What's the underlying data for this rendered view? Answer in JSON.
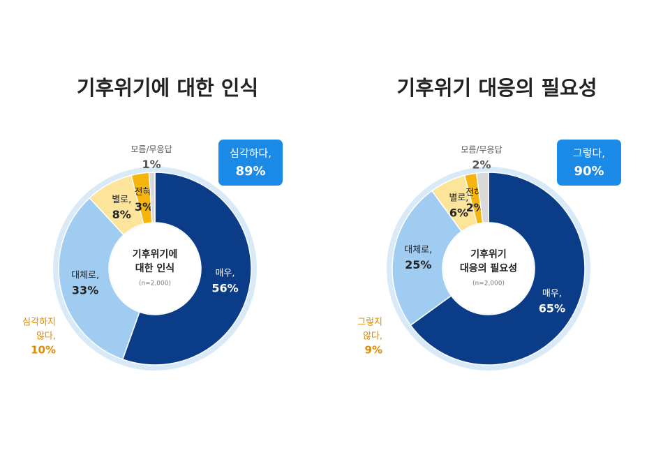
{
  "chart_data": [
    {
      "type": "donut",
      "title": "기후위기에 대한 인식",
      "center_label": [
        "기후위기에",
        "대한 인식"
      ],
      "n_label": "(n=2,000)",
      "categories": [
        "매우,",
        "대체로,",
        "별로,",
        "전혀,",
        "모름/무응답"
      ],
      "values": [
        56,
        33,
        8,
        3,
        1
      ],
      "value_labels": [
        "56%",
        "33%",
        "8%",
        "3%",
        "1%"
      ],
      "colors": [
        "#0b3c88",
        "#9fccf0",
        "#fde49b",
        "#f6b40e",
        "#d9d9d9"
      ],
      "summary": [
        {
          "lines": [
            "심각하다,"
          ],
          "value": 89,
          "value_label": "89%",
          "color": "#1a8ae6"
        },
        {
          "lines": [
            "심각하지",
            "않다,"
          ],
          "value": 10,
          "value_label": "10%",
          "color": "#e08a00"
        }
      ]
    },
    {
      "type": "donut",
      "title": "기후위기 대응의 필요성",
      "center_label": [
        "기후위기",
        "대응의 필요성"
      ],
      "n_label": "(n=2,000)",
      "categories": [
        "매우,",
        "대체로,",
        "별로,",
        "전혀,",
        "모름/무응답"
      ],
      "values": [
        65,
        25,
        6,
        2,
        2
      ],
      "value_labels": [
        "65%",
        "25%",
        "6%",
        "2%",
        "2%"
      ],
      "colors": [
        "#0b3c88",
        "#9fccf0",
        "#fde49b",
        "#f6b40e",
        "#d9d9d9"
      ],
      "summary": [
        {
          "lines": [
            "그렇다,"
          ],
          "value": 90,
          "value_label": "90%",
          "color": "#1a8ae6"
        },
        {
          "lines": [
            "그렇지",
            "않다,"
          ],
          "value": 9,
          "value_label": "9%",
          "color": "#e08a00"
        }
      ]
    }
  ]
}
